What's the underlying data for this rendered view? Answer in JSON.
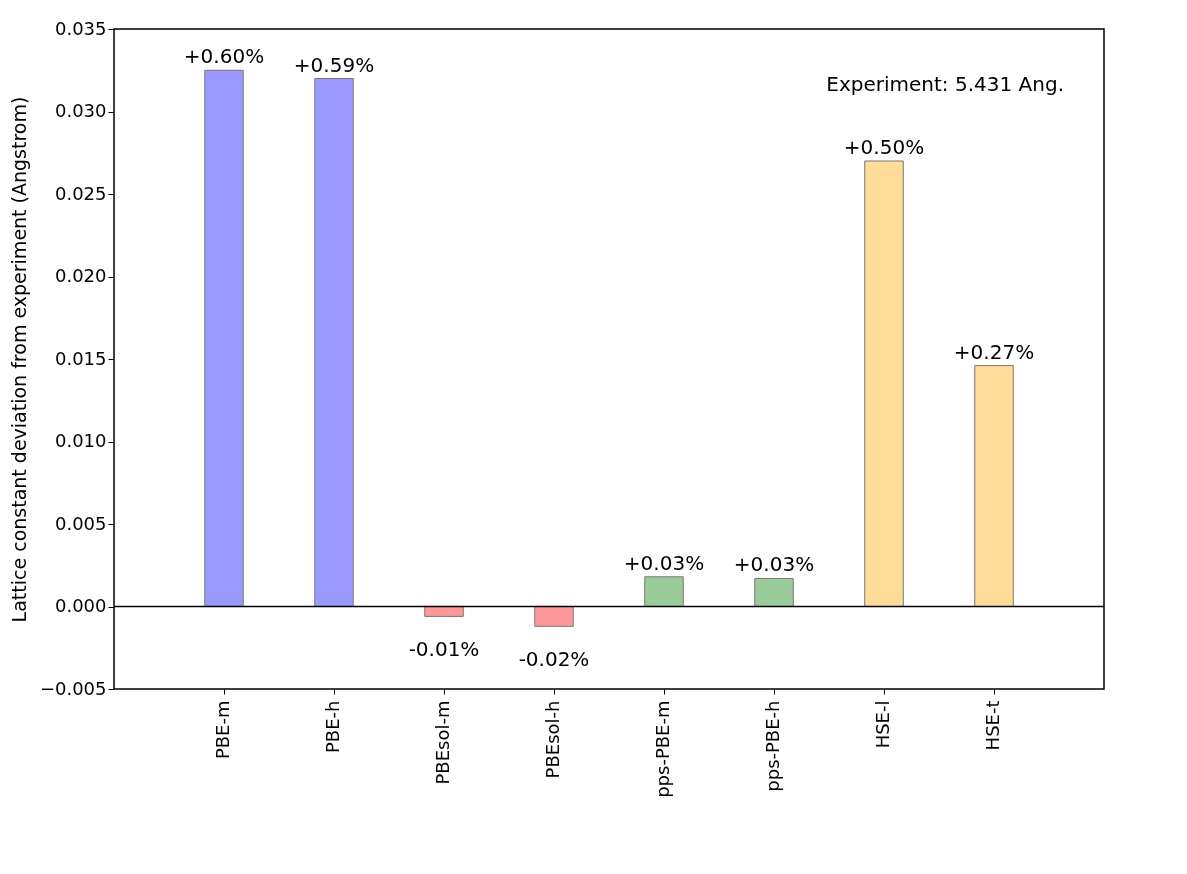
{
  "chart_data": {
    "type": "bar",
    "ylabel": "Lattice constant deviation from experiment (Angstrom)",
    "categories": [
      "PBE-m",
      "PBE-h",
      "PBEsol-m",
      "PBEsol-h",
      "pps-PBE-m",
      "pps-PBE-h",
      "HSE-l",
      "HSE-t"
    ],
    "values": [
      0.0325,
      0.032,
      -0.0006,
      -0.0012,
      0.0018,
      0.0017,
      0.027,
      0.0146
    ],
    "colors": [
      "#9999ff",
      "#9999ff",
      "#ff9999",
      "#ff9999",
      "#99cc99",
      "#99cc99",
      "#ffdd99",
      "#ffdd99"
    ],
    "ylim": [
      -0.005,
      0.035
    ],
    "yticks": [
      {
        "value": -0.005,
        "label": "−0.005"
      },
      {
        "value": 0,
        "label": "0.000"
      },
      {
        "value": 0.005,
        "label": "0.005"
      },
      {
        "value": 0.01,
        "label": "0.010"
      },
      {
        "value": 0.015,
        "label": "0.015"
      },
      {
        "value": 0.02,
        "label": "0.020"
      },
      {
        "value": 0.025,
        "label": "0.025"
      },
      {
        "value": 0.03,
        "label": "0.030"
      },
      {
        "value": 0.035,
        "label": "0.035"
      }
    ],
    "ref_lines": [
      {
        "axis": "y",
        "value": 0
      }
    ],
    "annotations": [
      "Experiment: 5.431 Ang.",
      {
        "text": "+0.60%",
        "x": "PBE-m",
        "y": 0.0325
      },
      {
        "text": "+0.59%",
        "x": "PBE-h",
        "y": 0.032
      },
      {
        "text": "-0.01%",
        "x": "PBEsol-m",
        "y": -0.0006
      },
      {
        "text": "-0.02%",
        "x": "PBEsol-h",
        "y": -0.0012
      },
      {
        "text": "+0.03%",
        "x": "pps-PBE-m",
        "y": 0.0018
      },
      {
        "text": "+0.03%",
        "x": "pps-PBE-h",
        "y": 0.0017
      },
      {
        "text": "+0.50%",
        "x": "HSE-l",
        "y": 0.027
      },
      {
        "text": "+0.27%",
        "x": "HSE-t",
        "y": 0.0146
      }
    ],
    "grid": false
  }
}
